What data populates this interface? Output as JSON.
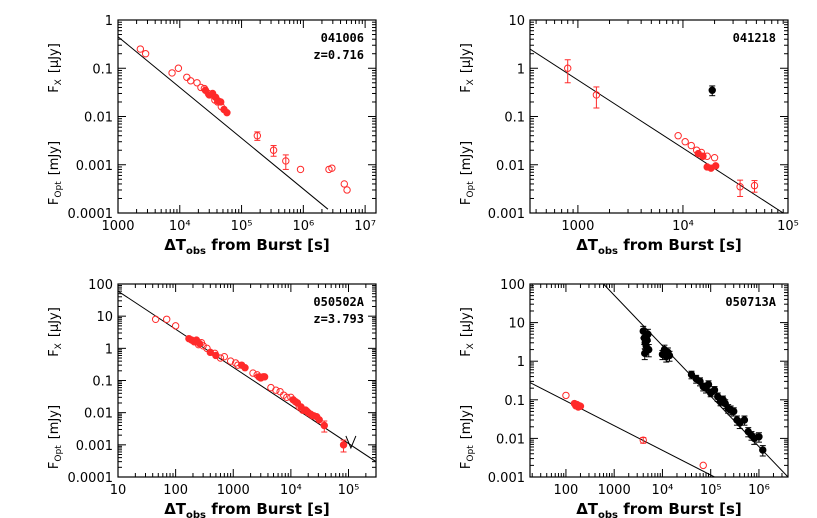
{
  "colors": {
    "optical": "#ff2a2a",
    "xray": "#000000",
    "frame": "#000000",
    "fit_line": "#000000"
  },
  "chart_data": [
    {
      "type": "scatter",
      "title": "041006",
      "annotation_lines": [
        "041006",
        "z=0.716"
      ],
      "xlabel": "ΔT_obs from Burst [s]",
      "xlabel_main": "ΔT",
      "xlabel_sub": "obs",
      "xlabel_rest": " from Burst [s]",
      "ylabel_right": "F_X [μJy]",
      "ylabel_left": "F_Opt [mJy]",
      "ylabel_r_main": "F",
      "ylabel_r_sub": "X",
      "ylabel_r_unit": "[μJy]",
      "ylabel_l_main": "F",
      "ylabel_l_sub": "Opt",
      "ylabel_l_unit": "[mJy]",
      "xscale": "log",
      "yscale": "log",
      "xlim": [
        1000,
        15000000
      ],
      "ylim": [
        0.0001,
        1
      ],
      "x_ticks": [
        {
          "value": 1000,
          "label": "1000"
        },
        {
          "value": 10000,
          "label": "10⁴"
        },
        {
          "value": 100000,
          "label": "10⁵"
        },
        {
          "value": 1000000,
          "label": "10⁶"
        },
        {
          "value": 10000000,
          "label": "10⁷"
        }
      ],
      "y_ticks": [
        {
          "value": 1,
          "label": "1"
        },
        {
          "value": 0.1,
          "label": "0.1"
        },
        {
          "value": 0.01,
          "label": "0.01"
        },
        {
          "value": 0.001,
          "label": "0.001"
        },
        {
          "value": 0.0001,
          "label": "0.0001"
        }
      ],
      "fit_lines": [
        {
          "x": [
            1000,
            2500000
          ],
          "y": [
            0.45,
            0.00012
          ]
        }
      ],
      "series": [
        {
          "name": "optical",
          "marker": "open-circle",
          "x": [
            2300,
            2800,
            7500,
            9500,
            13000,
            15000,
            19000,
            22000,
            25000,
            29000,
            33000,
            37000,
            41000,
            47000,
            900000,
            2600000,
            2900000,
            4600000,
            5100000
          ],
          "y": [
            0.25,
            0.2,
            0.08,
            0.1,
            0.065,
            0.055,
            0.05,
            0.04,
            0.038,
            0.03,
            0.028,
            0.022,
            0.02,
            0.016,
            0.0008,
            0.0008,
            0.00085,
            0.0004,
            0.0003
          ]
        },
        {
          "name": "optical",
          "marker": "filled-circle",
          "x": [
            26000,
            30000,
            34000,
            38000,
            42000,
            46000,
            52000,
            58000
          ],
          "y": [
            0.035,
            0.028,
            0.03,
            0.025,
            0.021,
            0.02,
            0.014,
            0.012
          ]
        },
        {
          "name": "optical",
          "marker": "open-circle-errorbar",
          "x": [
            180000,
            330000,
            520000
          ],
          "y": [
            0.004,
            0.002,
            0.0012
          ],
          "yerr": [
            0.0008,
            0.0005,
            0.0004
          ]
        }
      ]
    },
    {
      "type": "scatter",
      "title": "041218",
      "annotation_lines": [
        "041218"
      ],
      "xlabel": "ΔT_obs from Burst [s]",
      "xlabel_main": "ΔT",
      "xlabel_sub": "obs",
      "xlabel_rest": " from Burst [s]",
      "ylabel_right": "F_X [μJy]",
      "ylabel_left": "F_Opt [mJy]",
      "ylabel_r_main": "F",
      "ylabel_r_sub": "X",
      "ylabel_r_unit": "[μJy]",
      "ylabel_l_main": "F",
      "ylabel_l_sub": "Opt",
      "ylabel_l_unit": "[mJy]",
      "xscale": "log",
      "yscale": "log",
      "xlim": [
        350,
        100000
      ],
      "ylim": [
        0.001,
        10
      ],
      "x_ticks": [
        {
          "value": 1000,
          "label": "1000"
        },
        {
          "value": 10000,
          "label": "10⁴"
        },
        {
          "value": 100000,
          "label": "10⁵"
        }
      ],
      "y_ticks": [
        {
          "value": 10,
          "label": "10"
        },
        {
          "value": 1,
          "label": "1"
        },
        {
          "value": 0.1,
          "label": "0.1"
        },
        {
          "value": 0.01,
          "label": "0.01"
        },
        {
          "value": 0.001,
          "label": "0.001"
        }
      ],
      "fit_lines": [
        {
          "x": [
            350,
            90000
          ],
          "y": [
            2.5,
            0.001
          ]
        }
      ],
      "series": [
        {
          "name": "optical",
          "marker": "open-circle-errorbar",
          "x": [
            800,
            1500,
            35000,
            48000
          ],
          "y": [
            1.0,
            0.28,
            0.0035,
            0.0037
          ],
          "yerr": [
            0.5,
            0.13,
            0.0013,
            0.001
          ]
        },
        {
          "name": "optical",
          "marker": "open-circle",
          "x": [
            9000,
            10500,
            12000,
            13500,
            15000,
            17000,
            20000
          ],
          "y": [
            0.04,
            0.03,
            0.025,
            0.02,
            0.018,
            0.015,
            0.014
          ]
        },
        {
          "name": "optical",
          "marker": "filled-circle",
          "x": [
            14000,
            15500,
            17000,
            18500,
            20500
          ],
          "y": [
            0.017,
            0.015,
            0.009,
            0.0085,
            0.0095
          ]
        },
        {
          "name": "xray",
          "marker": "filled-circle-errorbar",
          "x": [
            19000
          ],
          "y": [
            0.35
          ],
          "yerr": [
            0.08
          ]
        }
      ]
    },
    {
      "type": "scatter",
      "title": "050502A",
      "annotation_lines": [
        "050502A",
        "z=3.793"
      ],
      "xlabel": "ΔT_obs from Burst [s]",
      "xlabel_main": "ΔT",
      "xlabel_sub": "obs",
      "xlabel_rest": " from Burst [s]",
      "ylabel_right": "F_X [μJy]",
      "ylabel_left": "F_Opt [mJy]",
      "ylabel_r_main": "F",
      "ylabel_r_sub": "X",
      "ylabel_r_unit": "[μJy]",
      "ylabel_l_main": "F",
      "ylabel_l_sub": "Opt",
      "ylabel_l_unit": "[mJy]",
      "xscale": "log",
      "yscale": "log",
      "xlim": [
        10,
        300000
      ],
      "ylim": [
        0.0001,
        100
      ],
      "x_ticks": [
        {
          "value": 10,
          "label": "10"
        },
        {
          "value": 100,
          "label": "100"
        },
        {
          "value": 1000,
          "label": "1000"
        },
        {
          "value": 10000,
          "label": "10⁴"
        },
        {
          "value": 100000,
          "label": "10⁵"
        }
      ],
      "y_ticks": [
        {
          "value": 100,
          "label": "100"
        },
        {
          "value": 10,
          "label": "10"
        },
        {
          "value": 1,
          "label": "1"
        },
        {
          "value": 0.1,
          "label": "0.1"
        },
        {
          "value": 0.01,
          "label": "0.01"
        },
        {
          "value": 0.001,
          "label": "0.001"
        },
        {
          "value": 0.0001,
          "label": "0.0001"
        }
      ],
      "fit_lines": [
        {
          "x": [
            10,
            300000
          ],
          "y": [
            60,
            0.0003
          ]
        }
      ],
      "series": [
        {
          "name": "optical",
          "marker": "open-circle",
          "x": [
            45,
            70,
            100,
            250,
            280,
            300,
            350,
            480,
            600,
            700,
            900,
            1100,
            1200,
            2200,
            2600,
            3300,
            4500,
            5500,
            6500,
            7500,
            8500,
            10000,
            12000,
            14000,
            16000,
            18000,
            20000,
            24000
          ],
          "y": [
            8,
            8,
            5,
            1.3,
            1.5,
            1.2,
            1.0,
            0.7,
            0.5,
            0.55,
            0.4,
            0.35,
            0.3,
            0.17,
            0.15,
            0.13,
            0.06,
            0.05,
            0.045,
            0.035,
            0.03,
            0.03,
            0.022,
            0.015,
            0.012,
            0.012,
            0.01,
            0.008
          ]
        },
        {
          "name": "optical",
          "marker": "filled-circle",
          "x": [
            170,
            190,
            210,
            230,
            260,
            400,
            500,
            1400,
            1600,
            2800,
            3000,
            3500,
            11000,
            13000,
            15000,
            17000,
            19000,
            22000,
            25000,
            28000,
            31000
          ],
          "y": [
            2.0,
            1.8,
            1.6,
            1.8,
            1.4,
            0.75,
            0.6,
            0.3,
            0.25,
            0.13,
            0.12,
            0.13,
            0.025,
            0.02,
            0.015,
            0.012,
            0.011,
            0.009,
            0.008,
            0.0075,
            0.006
          ]
        },
        {
          "name": "optical",
          "marker": "filled-circle-errorbar",
          "x": [
            38000,
            82000
          ],
          "y": [
            0.004,
            0.001
          ],
          "yerr": [
            0.0015,
            0.0004
          ]
        },
        {
          "name": "optical",
          "marker": "upper-limit",
          "x": [
            110000
          ],
          "y": [
            0.0008
          ]
        }
      ]
    },
    {
      "type": "scatter",
      "title": "050713A",
      "annotation_lines": [
        "050713A"
      ],
      "xlabel": "ΔT_obs from Burst [s]",
      "xlabel_main": "ΔT",
      "xlabel_sub": "obs",
      "xlabel_rest": " from Burst [s]",
      "ylabel_right": "F_X [μJy]",
      "ylabel_left": "F_Opt [mJy]",
      "ylabel_r_main": "F",
      "ylabel_r_sub": "X",
      "ylabel_r_unit": "[μJy]",
      "ylabel_l_main": "F",
      "ylabel_l_sub": "Opt",
      "ylabel_l_unit": "[mJy]",
      "xscale": "log",
      "yscale": "log",
      "xlim": [
        18,
        4000000
      ],
      "ylim": [
        0.001,
        100
      ],
      "x_ticks": [
        {
          "value": 100,
          "label": "100"
        },
        {
          "value": 1000,
          "label": "1000"
        },
        {
          "value": 10000,
          "label": "10⁴"
        },
        {
          "value": 100000,
          "label": "10⁵"
        },
        {
          "value": 1000000,
          "label": "10⁶"
        }
      ],
      "y_ticks": [
        {
          "value": 100,
          "label": "100"
        },
        {
          "value": 10,
          "label": "10"
        },
        {
          "value": 1,
          "label": "1"
        },
        {
          "value": 0.1,
          "label": "0.1"
        },
        {
          "value": 0.01,
          "label": "0.01"
        },
        {
          "value": 0.001,
          "label": "0.001"
        }
      ],
      "fit_lines": [
        {
          "x": [
            18,
            120000
          ],
          "y": [
            0.28,
            0.001
          ]
        },
        {
          "x": [
            600,
            4000000
          ],
          "y": [
            100,
            0.001
          ]
        }
      ],
      "series": [
        {
          "name": "optical",
          "marker": "open-circle",
          "x": [
            100,
            70000
          ],
          "y": [
            0.13,
            0.002
          ]
        },
        {
          "name": "optical",
          "marker": "filled-circle",
          "x": [
            150,
            160,
            170,
            180,
            190,
            200
          ],
          "y": [
            0.08,
            0.07,
            0.075,
            0.065,
            0.07,
            0.068
          ]
        },
        {
          "name": "optical",
          "marker": "open-circle-errorbar",
          "x": [
            4000
          ],
          "y": [
            0.009
          ],
          "yerr": [
            0.0015
          ]
        },
        {
          "name": "xray",
          "marker": "filled-circle-errorbar",
          "x": [
            4000,
            4200,
            4400,
            4600,
            4800,
            5000,
            5200,
            4300,
            4700,
            10000,
            11000,
            12000,
            13000,
            14000,
            40000,
            50000,
            60000,
            70000,
            80000,
            90000,
            100000,
            120000,
            140000,
            160000,
            180000,
            200000,
            230000,
            260000,
            300000,
            350000,
            400000,
            500000,
            600000,
            700000,
            800000,
            1000000,
            1200000
          ],
          "y": [
            6,
            4,
            3,
            2.5,
            3.5,
            5,
            2,
            1.6,
            4.5,
            1.5,
            2,
            1.3,
            1.7,
            1.4,
            0.45,
            0.35,
            0.3,
            0.22,
            0.2,
            0.25,
            0.15,
            0.18,
            0.12,
            0.09,
            0.1,
            0.08,
            0.06,
            0.055,
            0.05,
            0.03,
            0.025,
            0.03,
            0.015,
            0.012,
            0.01,
            0.011,
            0.005
          ],
          "yerr": [
            2,
            1.3,
            1,
            0.8,
            1.2,
            1.7,
            0.7,
            0.5,
            1.5,
            0.4,
            0.6,
            0.35,
            0.5,
            0.4,
            0.1,
            0.08,
            0.07,
            0.05,
            0.05,
            0.06,
            0.03,
            0.04,
            0.03,
            0.02,
            0.025,
            0.02,
            0.015,
            0.014,
            0.012,
            0.008,
            0.007,
            0.008,
            0.004,
            0.003,
            0.003,
            0.003,
            0.0015
          ]
        }
      ]
    }
  ]
}
